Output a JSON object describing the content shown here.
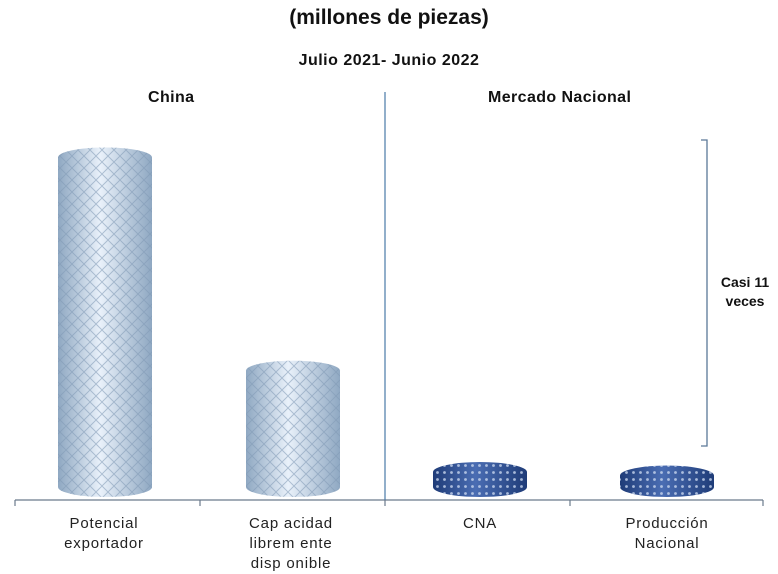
{
  "chart_data": {
    "type": "bar",
    "title": "(millones de piezas)",
    "subtitle": "Julio 2021- Junio 2022",
    "groups": [
      {
        "label": "China",
        "categories": [
          0,
          1
        ]
      },
      {
        "label": "Mercado Nacional",
        "categories": [
          2,
          3
        ]
      }
    ],
    "categories": [
      "Potencial\nexportador",
      "Cap acidad\nlibrem ente\ndisp onible",
      "CNA",
      "Producción\nNacional"
    ],
    "values": [
      100,
      39,
      10,
      9
    ],
    "ylim": [
      0,
      105
    ],
    "grid": false,
    "annotation": "Casi 11\nveces",
    "colors": {
      "china_bars": "#b9cfe4",
      "nacional_bars": "#2e4f93",
      "axis": "#6a7a8c",
      "divider": "#4a7aa8"
    }
  }
}
